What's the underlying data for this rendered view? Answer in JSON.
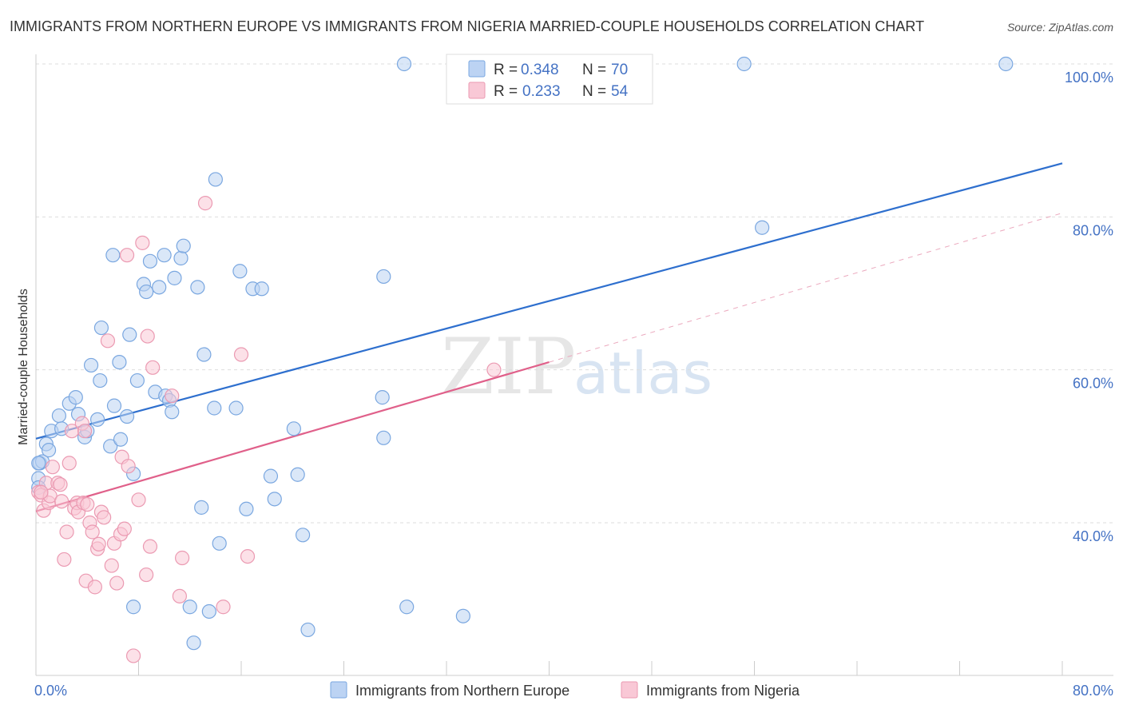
{
  "chart_data": {
    "type": "scatter",
    "title": "IMMIGRANTS FROM NORTHERN EUROPE VS IMMIGRANTS FROM NIGERIA MARRIED-COUPLE HOUSEHOLDS CORRELATION CHART",
    "source": "Source: ZipAtlas.com",
    "ylabel": "Married-couple Households",
    "xlim": [
      0,
      80
    ],
    "ylim": [
      20,
      102
    ],
    "x_tick_labels": [
      "0.0%",
      "80.0%"
    ],
    "y_ticks": [
      40,
      60,
      80,
      100
    ],
    "y_tick_labels": [
      "40.0%",
      "60.0%",
      "80.0%",
      "100.0%"
    ],
    "watermark": {
      "zip": "ZIP",
      "atlas": "atlas"
    },
    "legend": [
      {
        "r_label": "R =",
        "r_value": "0.348",
        "n_label": "N =",
        "n_value": "70"
      },
      {
        "r_label": "R =",
        "r_value": "0.233",
        "n_label": "N =",
        "n_value": "54"
      }
    ],
    "series": [
      {
        "name": "Immigrants from Northern Europe",
        "color": "#7aa7e0",
        "fill": "#bcd3f3",
        "line_color": "#2e6fce",
        "trend": {
          "x0": 0,
          "y0": 51.0,
          "x1": 80,
          "y1": 87.0
        },
        "points": [
          [
            0.2,
            45.8
          ],
          [
            0.3,
            47.8
          ],
          [
            0.5,
            48.0
          ],
          [
            0.8,
            50.3
          ],
          [
            1.0,
            49.5
          ],
          [
            1.2,
            52.0
          ],
          [
            1.8,
            54.0
          ],
          [
            2.0,
            52.3
          ],
          [
            2.6,
            55.6
          ],
          [
            3.1,
            56.4
          ],
          [
            3.3,
            54.2
          ],
          [
            3.8,
            51.2
          ],
          [
            4.0,
            52.0
          ],
          [
            4.3,
            60.6
          ],
          [
            4.8,
            53.5
          ],
          [
            5.0,
            58.6
          ],
          [
            5.1,
            65.5
          ],
          [
            5.8,
            50.0
          ],
          [
            6.1,
            55.3
          ],
          [
            6.0,
            75.0
          ],
          [
            6.5,
            61.0
          ],
          [
            6.6,
            50.9
          ],
          [
            7.1,
            53.9
          ],
          [
            7.3,
            64.6
          ],
          [
            7.6,
            46.4
          ],
          [
            7.9,
            58.6
          ],
          [
            8.4,
            71.2
          ],
          [
            8.6,
            70.2
          ],
          [
            8.9,
            74.2
          ],
          [
            9.3,
            57.1
          ],
          [
            9.6,
            70.8
          ],
          [
            10.0,
            75.0
          ],
          [
            10.1,
            56.6
          ],
          [
            10.4,
            56.0
          ],
          [
            10.6,
            54.5
          ],
          [
            10.8,
            72.0
          ],
          [
            11.3,
            74.6
          ],
          [
            11.5,
            76.2
          ],
          [
            12.6,
            70.8
          ],
          [
            12.9,
            42.0
          ],
          [
            13.1,
            62.0
          ],
          [
            13.9,
            55.0
          ],
          [
            14.0,
            84.9
          ],
          [
            14.3,
            37.3
          ],
          [
            15.6,
            55.0
          ],
          [
            15.9,
            72.9
          ],
          [
            16.4,
            41.8
          ],
          [
            16.9,
            70.6
          ],
          [
            17.6,
            70.6
          ],
          [
            18.3,
            46.1
          ],
          [
            18.6,
            43.1
          ],
          [
            20.1,
            52.3
          ],
          [
            20.4,
            46.3
          ],
          [
            20.8,
            38.4
          ],
          [
            27.0,
            56.4
          ],
          [
            27.1,
            51.1
          ],
          [
            27.1,
            72.2
          ],
          [
            28.7,
            100.0
          ],
          [
            28.9,
            29.0
          ],
          [
            33.3,
            27.8
          ],
          [
            55.2,
            100.0
          ],
          [
            56.6,
            78.6
          ],
          [
            75.6,
            100.0
          ],
          [
            7.6,
            29.0
          ],
          [
            12.0,
            29.0
          ],
          [
            13.5,
            28.4
          ],
          [
            12.3,
            24.3
          ],
          [
            21.2,
            26.0
          ],
          [
            0.2,
            47.8
          ],
          [
            0.2,
            44.6
          ]
        ]
      },
      {
        "name": "Immigrants from Nigeria",
        "color": "#eb9ab2",
        "fill": "#f9c8d6",
        "line_color": "#e0608a",
        "trend": {
          "x0": 0,
          "y0": 41.5,
          "x1": 40,
          "y1": 61.0
        },
        "trend_ext": {
          "x0": 40,
          "y0": 61.0,
          "x1": 80,
          "y1": 80.5
        },
        "points": [
          [
            0.2,
            44.0
          ],
          [
            0.4,
            43.6
          ],
          [
            0.6,
            41.6
          ],
          [
            0.8,
            45.2
          ],
          [
            1.0,
            42.6
          ],
          [
            1.1,
            43.5
          ],
          [
            1.3,
            47.3
          ],
          [
            1.7,
            45.2
          ],
          [
            1.9,
            45.0
          ],
          [
            2.2,
            35.2
          ],
          [
            2.4,
            38.8
          ],
          [
            2.6,
            47.8
          ],
          [
            2.8,
            52.0
          ],
          [
            3.0,
            41.9
          ],
          [
            3.2,
            42.6
          ],
          [
            3.3,
            41.4
          ],
          [
            3.6,
            53.0
          ],
          [
            3.7,
            42.6
          ],
          [
            3.9,
            32.4
          ],
          [
            4.0,
            42.4
          ],
          [
            4.2,
            40.0
          ],
          [
            4.4,
            38.8
          ],
          [
            4.6,
            31.6
          ],
          [
            4.8,
            36.6
          ],
          [
            4.9,
            37.2
          ],
          [
            5.1,
            41.4
          ],
          [
            5.3,
            40.7
          ],
          [
            5.6,
            63.8
          ],
          [
            5.9,
            34.4
          ],
          [
            6.1,
            37.3
          ],
          [
            6.3,
            32.1
          ],
          [
            6.6,
            38.5
          ],
          [
            6.7,
            48.6
          ],
          [
            6.9,
            39.2
          ],
          [
            7.1,
            75.0
          ],
          [
            7.2,
            47.4
          ],
          [
            7.6,
            22.6
          ],
          [
            8.0,
            43.0
          ],
          [
            8.3,
            76.6
          ],
          [
            8.6,
            33.2
          ],
          [
            8.7,
            64.4
          ],
          [
            8.9,
            36.9
          ],
          [
            9.1,
            60.3
          ],
          [
            10.6,
            56.6
          ],
          [
            11.2,
            30.4
          ],
          [
            11.4,
            35.4
          ],
          [
            13.2,
            81.8
          ],
          [
            14.6,
            29.0
          ],
          [
            16.0,
            62.0
          ],
          [
            16.5,
            35.6
          ],
          [
            35.7,
            60.0
          ],
          [
            2.0,
            42.8
          ],
          [
            3.8,
            52.0
          ],
          [
            0.4,
            44.0
          ]
        ]
      }
    ]
  }
}
